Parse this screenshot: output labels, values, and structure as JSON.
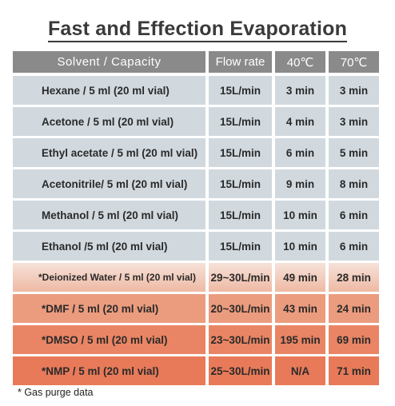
{
  "title": "Fast and Effection Evaporation",
  "headers": {
    "solvent": "Solvent / Capacity",
    "flow": "Flow rate",
    "t40": "40℃",
    "t70": "70℃"
  },
  "rows": [
    {
      "solvent": "Hexane /  5 ml (20 ml vial)",
      "flow": "15L/min",
      "t40": "3 min",
      "t70": "3 min"
    },
    {
      "solvent": "Acetone / 5 ml (20 ml vial)",
      "flow": "15L/min",
      "t40": "4 min",
      "t70": "3 min"
    },
    {
      "solvent": "Ethyl acetate / 5 ml (20 ml vial)",
      "flow": "15L/min",
      "t40": "6 min",
      "t70": "5 min"
    },
    {
      "solvent": "Acetonitrile/ 5 ml (20 ml vial)",
      "flow": "15L/min",
      "t40": "9 min",
      "t70": "8 min"
    },
    {
      "solvent": "Methanol / 5 ml (20 ml vial)",
      "flow": "15L/min",
      "t40": "10 min",
      "t70": "6 min"
    },
    {
      "solvent": "Ethanol  /5 ml (20 ml vial)",
      "flow": "15L/min",
      "t40": "10 min",
      "t70": "6 min"
    },
    {
      "solvent": "*Deionized Water / 5 ml (20 ml vial)",
      "flow": "29~30L/min",
      "t40": "49 min",
      "t70": "28 min"
    },
    {
      "solvent": "*DMF / 5 ml (20 ml vial)",
      "flow": "20~30L/min",
      "t40": "43 min",
      "t70": "24 min"
    },
    {
      "solvent": "*DMSO / 5 ml (20 ml vial)",
      "flow": "23~30L/min",
      "t40": "195 min",
      "t70": "69 min"
    },
    {
      "solvent": "*NMP / 5 ml (20 ml vial)",
      "flow": "25~30L/min",
      "t40": "N/A",
      "t70": "71 min"
    }
  ],
  "footnote": "* Gas purge data"
}
